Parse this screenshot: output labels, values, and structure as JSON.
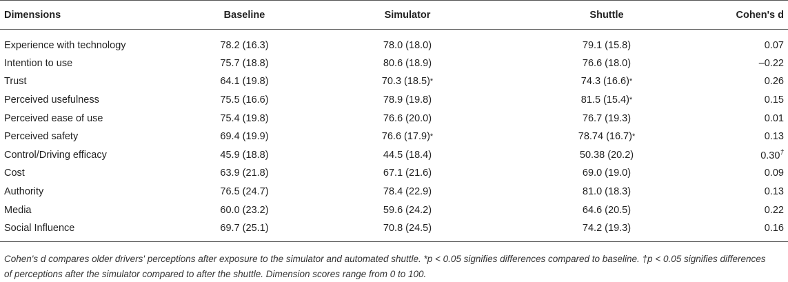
{
  "table": {
    "headers": {
      "dimension": "Dimensions",
      "baseline": "Baseline",
      "simulator": "Simulator",
      "shuttle": "Shuttle",
      "cohens_d": "Cohen's d"
    },
    "rows": [
      {
        "dimension": "Experience with technology",
        "baseline": "78.2 (16.3)",
        "simulator": "78.0 (18.0)",
        "simulator_mark": "",
        "shuttle": "79.1 (15.8)",
        "shuttle_mark": "",
        "cohens_d": "0.07",
        "d_mark": ""
      },
      {
        "dimension": "Intention to use",
        "baseline": "75.7 (18.8)",
        "simulator": "80.6 (18.9)",
        "simulator_mark": "",
        "shuttle": "76.6 (18.0)",
        "shuttle_mark": "",
        "cohens_d": "–0.22",
        "d_mark": ""
      },
      {
        "dimension": "Trust",
        "baseline": "64.1 (19.8)",
        "simulator": "70.3 (18.5)",
        "simulator_mark": "*",
        "shuttle": "74.3 (16.6)",
        "shuttle_mark": "*",
        "cohens_d": "0.26",
        "d_mark": ""
      },
      {
        "dimension": "Perceived usefulness",
        "baseline": "75.5 (16.6)",
        "simulator": "78.9 (19.8)",
        "simulator_mark": "",
        "shuttle": "81.5 (15.4)",
        "shuttle_mark": "*",
        "cohens_d": "0.15",
        "d_mark": ""
      },
      {
        "dimension": "Perceived ease of use",
        "baseline": "75.4 (19.8)",
        "simulator": "76.6 (20.0)",
        "simulator_mark": "",
        "shuttle": "76.7 (19.3)",
        "shuttle_mark": "",
        "cohens_d": "0.01",
        "d_mark": ""
      },
      {
        "dimension": "Perceived safety",
        "baseline": "69.4 (19.9)",
        "simulator": "76.6 (17.9)",
        "simulator_mark": "*",
        "shuttle": "78.74 (16.7)",
        "shuttle_mark": "*",
        "cohens_d": "0.13",
        "d_mark": ""
      },
      {
        "dimension": "Control/Driving efficacy",
        "baseline": "45.9 (18.8)",
        "simulator": "44.5 (18.4)",
        "simulator_mark": "",
        "shuttle": "50.38 (20.2)",
        "shuttle_mark": "",
        "cohens_d": "0.30",
        "d_mark": "†"
      },
      {
        "dimension": "Cost",
        "baseline": "63.9 (21.8)",
        "simulator": "67.1 (21.6)",
        "simulator_mark": "",
        "shuttle": "69.0 (19.0)",
        "shuttle_mark": "",
        "cohens_d": "0.09",
        "d_mark": ""
      },
      {
        "dimension": "Authority",
        "baseline": "76.5 (24.7)",
        "simulator": "78.4 (22.9)",
        "simulator_mark": "",
        "shuttle": "81.0 (18.3)",
        "shuttle_mark": "",
        "cohens_d": "0.13",
        "d_mark": ""
      },
      {
        "dimension": "Media",
        "baseline": "60.0 (23.2)",
        "simulator": "59.6 (24.2)",
        "simulator_mark": "",
        "shuttle": "64.6 (20.5)",
        "shuttle_mark": "",
        "cohens_d": "0.22",
        "d_mark": ""
      },
      {
        "dimension": "Social Influence",
        "baseline": "69.7 (25.1)",
        "simulator": "70.8 (24.5)",
        "simulator_mark": "",
        "shuttle": "74.2 (19.3)",
        "shuttle_mark": "",
        "cohens_d": "0.16",
        "d_mark": ""
      }
    ]
  },
  "footnote": {
    "line1": "Cohen's d compares older drivers' perceptions after exposure to the simulator and automated shuttle. *p < 0.05 signifies differences compared to baseline. †p < 0.05 signifies differences",
    "line2": "of perceptions after the simulator compared to after the shuttle. Dimension scores range from 0 to 100."
  }
}
